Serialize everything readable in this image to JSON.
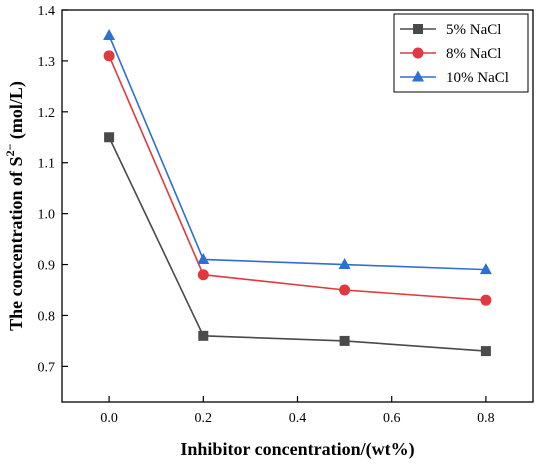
{
  "chart_data": {
    "type": "line",
    "xlabel": "Inhibitor concentration/(wt%)",
    "ylabel_prefix": "The concentration of S",
    "ylabel_sup": "2−",
    "ylabel_suffix": " (mol/L)",
    "xlim": [
      -0.1,
      0.9
    ],
    "ylim": [
      0.63,
      1.4
    ],
    "x_ticks": [
      0.0,
      0.2,
      0.4,
      0.6,
      0.8
    ],
    "x_tick_labels": [
      "0.0",
      "0.2",
      "0.4",
      "0.6",
      "0.8"
    ],
    "y_ticks": [
      0.7,
      0.8,
      0.9,
      1.0,
      1.1,
      1.2,
      1.3,
      1.4
    ],
    "y_tick_labels": [
      "0.7",
      "0.8",
      "0.9",
      "1.0",
      "1.1",
      "1.2",
      "1.3",
      "1.4"
    ],
    "grid": false,
    "legend_position": "top-right",
    "series": [
      {
        "name": "5% NaCl",
        "marker": "square",
        "color": "#4a4a4a",
        "x": [
          0.0,
          0.2,
          0.5,
          0.8
        ],
        "values": [
          1.15,
          0.76,
          0.75,
          0.73
        ]
      },
      {
        "name": "8% NaCl",
        "marker": "circle",
        "color": "#e0393e",
        "x": [
          0.0,
          0.2,
          0.5,
          0.8
        ],
        "values": [
          1.31,
          0.88,
          0.85,
          0.83
        ]
      },
      {
        "name": "10% NaCl",
        "marker": "triangle",
        "color": "#2e6fd6",
        "x": [
          0.0,
          0.2,
          0.5,
          0.8
        ],
        "values": [
          1.35,
          0.91,
          0.9,
          0.89
        ]
      }
    ]
  }
}
